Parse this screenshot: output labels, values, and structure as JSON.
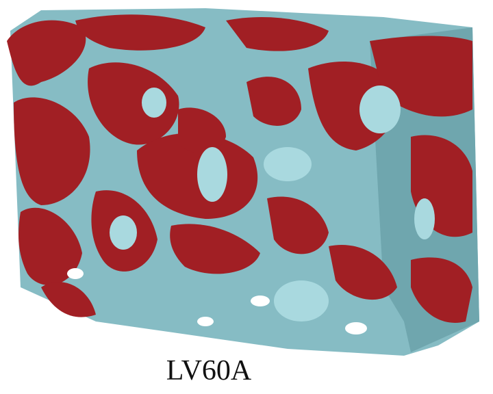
{
  "caption": "LV60A"
}
